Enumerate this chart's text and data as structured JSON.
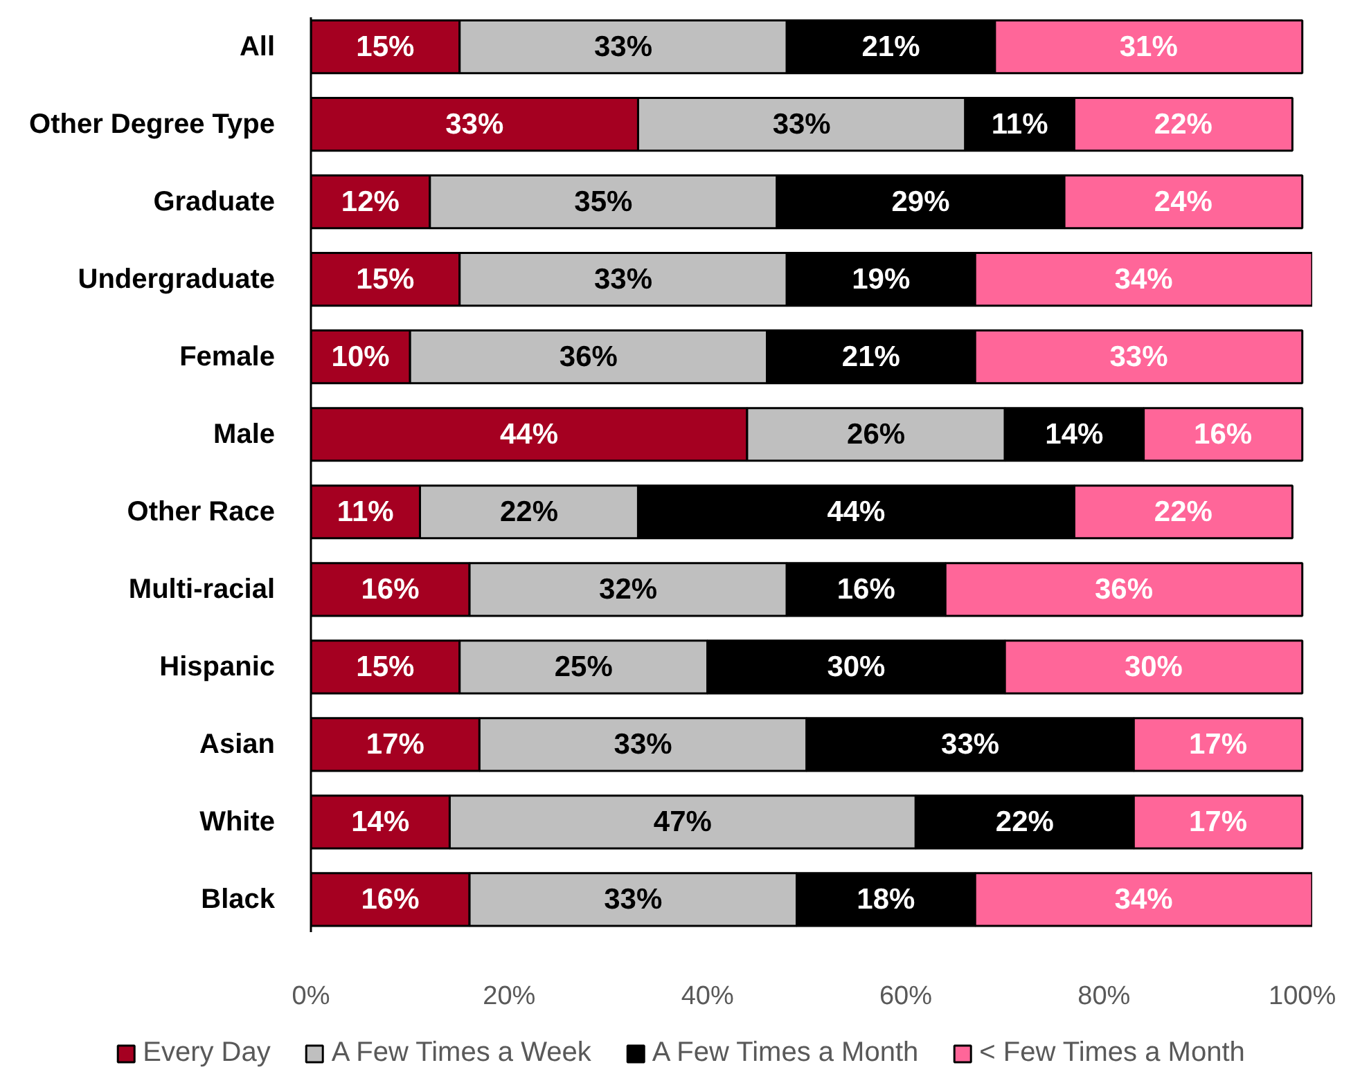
{
  "chart_data": {
    "type": "bar",
    "orientation": "horizontal",
    "stacked": true,
    "categories": [
      "All",
      "Other Degree Type",
      "Graduate",
      "Undergraduate",
      "Female",
      "Male",
      "Other Race",
      "Multi-racial",
      "Hispanic",
      "Asian",
      "White",
      "Black"
    ],
    "series": [
      {
        "name": "Every Day",
        "color": "#a50021",
        "values": [
          15,
          33,
          12,
          15,
          10,
          44,
          11,
          16,
          15,
          17,
          14,
          16
        ],
        "value_labels": [
          "15%",
          "33%",
          "12%",
          "15%",
          "10%",
          "44%",
          "11%",
          "16%",
          "15%",
          "17%",
          "14%",
          "16%"
        ]
      },
      {
        "name": "A Few Times a Week",
        "color": "#bfbfbf",
        "values": [
          33,
          33,
          35,
          33,
          36,
          26,
          22,
          32,
          25,
          33,
          47,
          33
        ],
        "value_labels": [
          "33%",
          "33%",
          "35%",
          "33%",
          "36%",
          "26%",
          "22%",
          "32%",
          "25%",
          "33%",
          "47%",
          "33%"
        ]
      },
      {
        "name": "A Few Times a Month",
        "color": "#000000",
        "values": [
          21,
          11,
          29,
          19,
          21,
          14,
          44,
          16,
          30,
          33,
          22,
          18
        ],
        "value_labels": [
          "21%",
          "11%",
          "29%",
          "19%",
          "21%",
          "14%",
          "44%",
          "16%",
          "30%",
          "33%",
          "22%",
          "18%"
        ]
      },
      {
        "name": "< Few Times a Month",
        "color": "#ff6699",
        "values": [
          31,
          22,
          24,
          34,
          33,
          16,
          22,
          36,
          30,
          17,
          17,
          34
        ],
        "value_labels": [
          "31%",
          "22%",
          "24%",
          "34%",
          "33%",
          "16%",
          "22%",
          "36%",
          "30%",
          "17%",
          "17%",
          "34%"
        ]
      }
    ],
    "xlim": [
      0,
      101
    ],
    "xticks": [
      {
        "value": 0,
        "label": "0%"
      },
      {
        "value": 20,
        "label": "20%"
      },
      {
        "value": 40,
        "label": "40%"
      },
      {
        "value": 60,
        "label": "60%"
      },
      {
        "value": 80,
        "label": "80%"
      },
      {
        "value": 100,
        "label": "100%"
      }
    ],
    "legend": "bottom",
    "grid": false
  }
}
